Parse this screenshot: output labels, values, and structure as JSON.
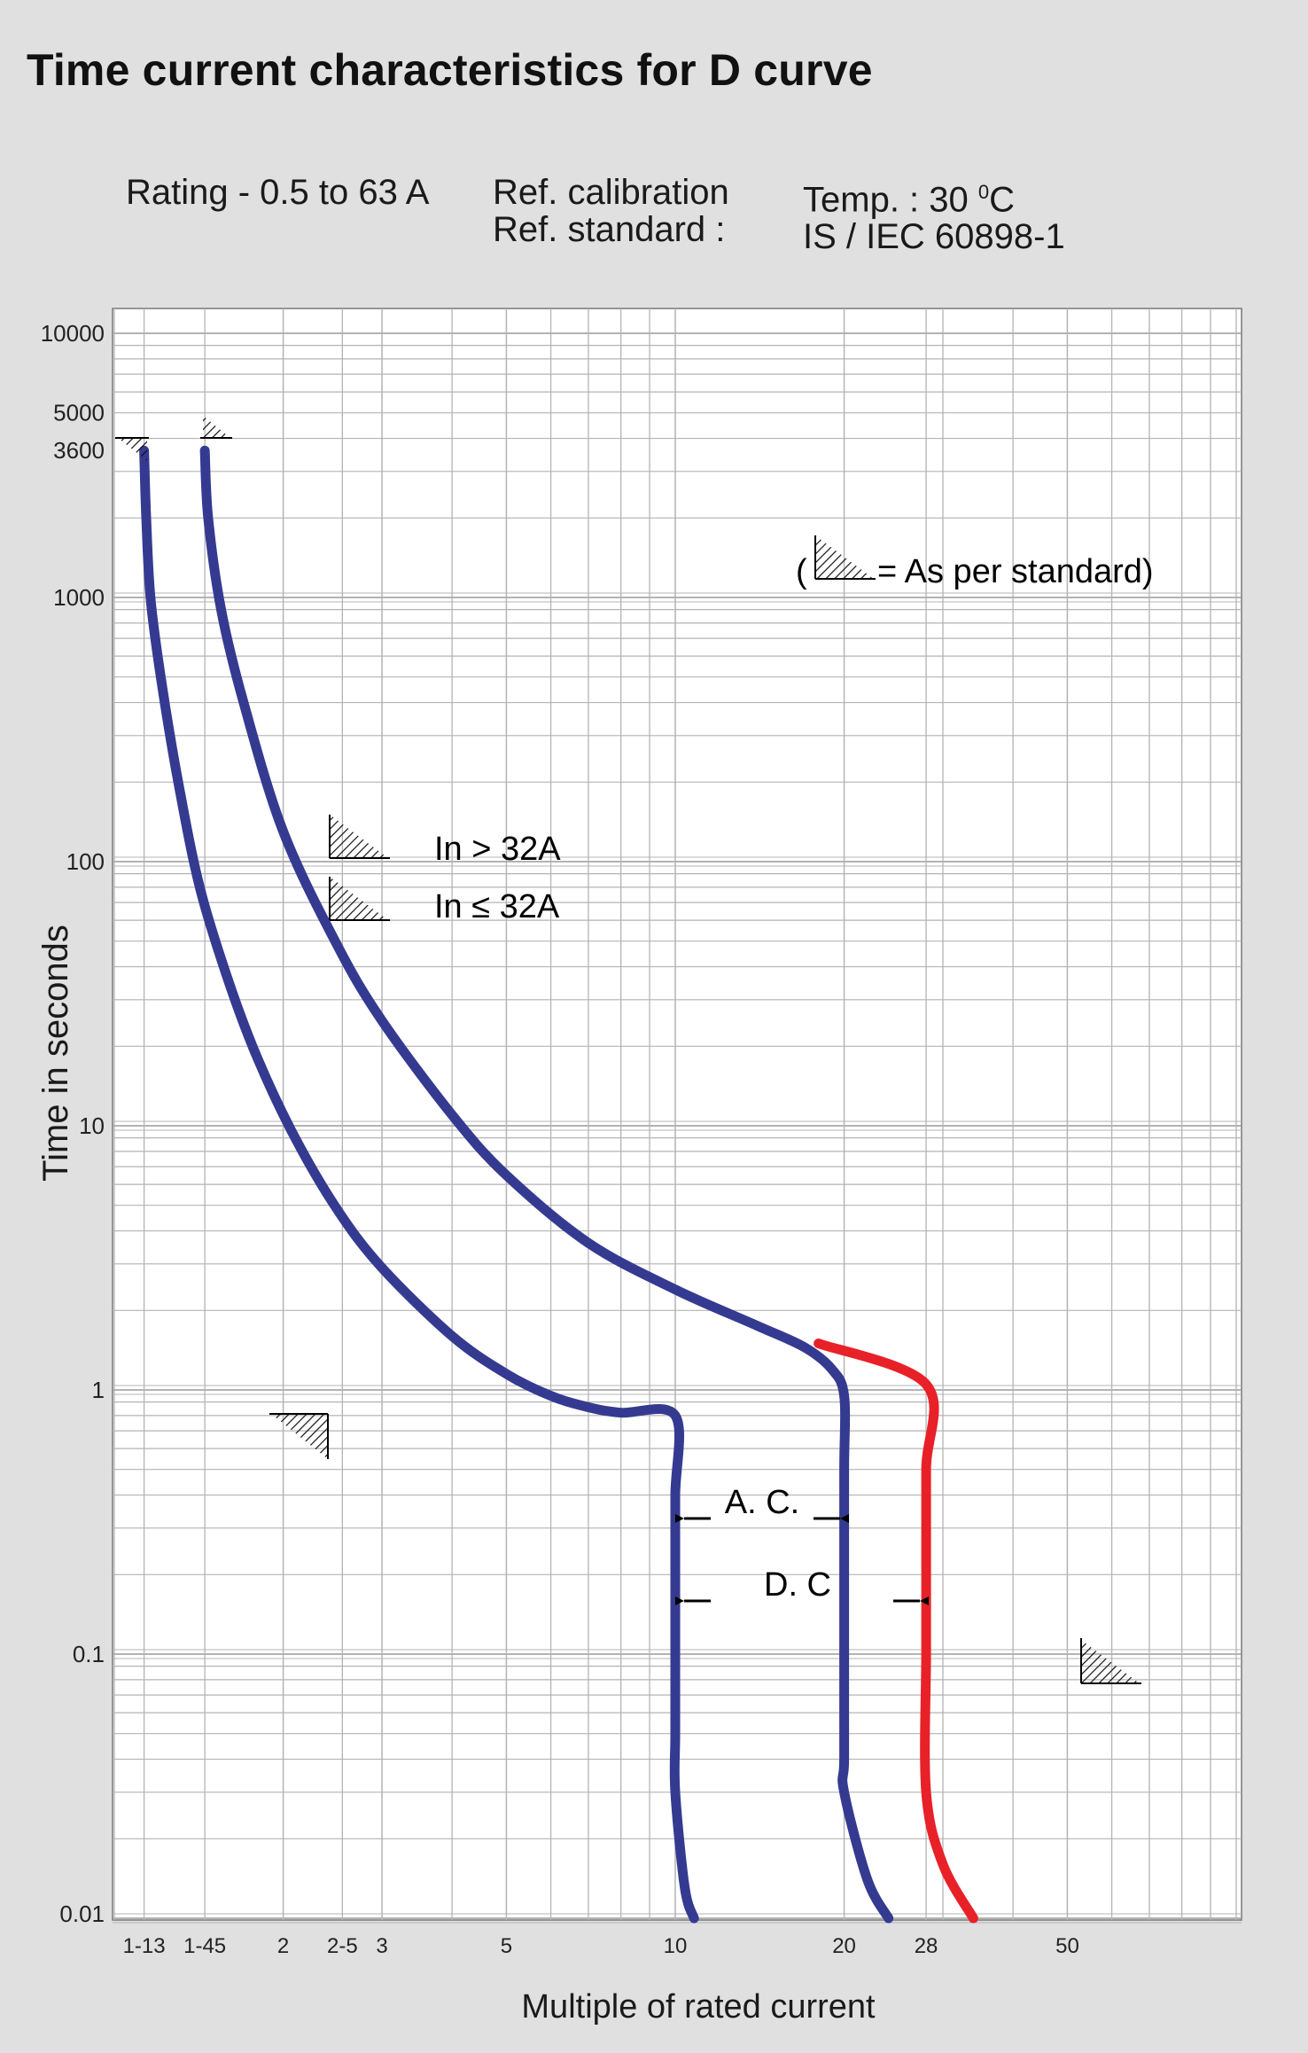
{
  "header": {
    "title": "Time current characteristics for D curve",
    "rating": "Rating - 0.5 to 63 A",
    "ref_calibration": "Ref. calibration",
    "ref_standard": "Ref. standard :",
    "temp_prefix": "Temp. : 30 ",
    "temp_sup": "0",
    "temp_suffix": "C",
    "standard_name": "IS / IEC 60898-1"
  },
  "chart_data": {
    "type": "line",
    "title": "Time current characteristics for D curve",
    "xlabel": "Multiple of rated current",
    "ylabel": "Time in seconds",
    "x_scale": "log",
    "y_scale": "log",
    "xlim": [
      1,
      100
    ],
    "ylim": [
      0.01,
      10000
    ],
    "grid": true,
    "x_ticks": [
      {
        "x": 1.13,
        "label": "1-13"
      },
      {
        "x": 1.45,
        "label": "1-45"
      },
      {
        "x": 2,
        "label": "2"
      },
      {
        "x": 2.55,
        "label": "2-5"
      },
      {
        "x": 3,
        "label": "3"
      },
      {
        "x": 5,
        "label": "5"
      },
      {
        "x": 10,
        "label": "10"
      },
      {
        "x": 20,
        "label": "20"
      },
      {
        "x": 28,
        "label": "28"
      },
      {
        "x": 50,
        "label": "50"
      }
    ],
    "y_ticks": [
      {
        "y": 10000,
        "label": "10000"
      },
      {
        "y": 5000,
        "label": "5000"
      },
      {
        "y": 3600,
        "label": "3600"
      },
      {
        "y": 1000,
        "label": "1000"
      },
      {
        "y": 100,
        "label": "100"
      },
      {
        "y": 10,
        "label": "10"
      },
      {
        "y": 1,
        "label": "1"
      },
      {
        "y": 0.1,
        "label": "0.1"
      },
      {
        "y": 0.01,
        "label": "0.01"
      }
    ],
    "series": [
      {
        "color": "#353a91",
        "points": [
          [
            1.13,
            3600
          ],
          [
            1.14,
            2000
          ],
          [
            1.16,
            1000
          ],
          [
            1.21,
            500
          ],
          [
            1.3,
            200
          ],
          [
            1.42,
            80
          ],
          [
            1.6,
            35
          ],
          [
            1.8,
            18
          ],
          [
            2.1,
            9
          ],
          [
            2.5,
            4.8
          ],
          [
            3,
            2.9
          ],
          [
            4,
            1.6
          ],
          [
            5,
            1.15
          ],
          [
            6,
            0.95
          ],
          [
            7,
            0.86
          ],
          [
            8,
            0.82
          ],
          [
            10,
            0.8
          ],
          [
            10,
            0.4
          ],
          [
            10,
            0.2
          ],
          [
            10,
            0.1
          ],
          [
            10,
            0.05
          ],
          [
            10,
            0.03
          ],
          [
            10.4,
            0.013
          ],
          [
            10.8,
            0.01
          ]
        ]
      },
      {
        "color": "#353a91",
        "points": [
          [
            1.45,
            3600
          ],
          [
            1.47,
            2000
          ],
          [
            1.55,
            900
          ],
          [
            1.7,
            400
          ],
          [
            2,
            130
          ],
          [
            2.5,
            48
          ],
          [
            3,
            25
          ],
          [
            4,
            11
          ],
          [
            5,
            6.5
          ],
          [
            7,
            3.6
          ],
          [
            10,
            2.4
          ],
          [
            14,
            1.75
          ],
          [
            17,
            1.45
          ],
          [
            19,
            1.2
          ],
          [
            20,
            0.95
          ],
          [
            20,
            0.5
          ],
          [
            20,
            0.2
          ],
          [
            20,
            0.1
          ],
          [
            20,
            0.04
          ],
          [
            20,
            0.03
          ],
          [
            22,
            0.014
          ],
          [
            24,
            0.01
          ]
        ]
      },
      {
        "color": "#e82128",
        "points": [
          [
            18,
            1.5
          ],
          [
            28,
            1.05
          ],
          [
            28,
            0.5
          ],
          [
            28,
            0.2
          ],
          [
            28,
            0.1
          ],
          [
            28,
            0.03
          ],
          [
            30,
            0.016
          ],
          [
            34,
            0.01
          ]
        ]
      }
    ],
    "annotations": [
      {
        "text": "In > 32A",
        "hatch": true
      },
      {
        "text": "In ≤ 32A",
        "hatch": true
      },
      {
        "text": "A. C.",
        "arrow_from_x": 10,
        "arrow_to_x": 20,
        "y": 0.4
      },
      {
        "text": "D. C",
        "arrow_from_x": 10,
        "arrow_to_x": 28,
        "y": 0.2
      }
    ],
    "legend": {
      "open": "(",
      "text": " = As per standard)"
    },
    "legend_position": "top-right"
  }
}
